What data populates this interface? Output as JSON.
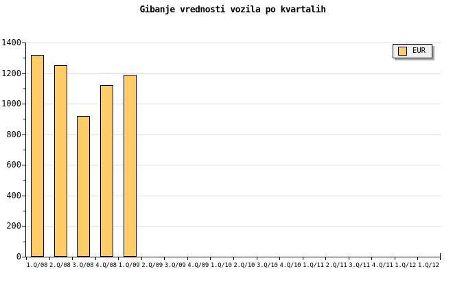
{
  "title": "Gibanje vrednosti vozila po kvartalih",
  "legend": {
    "label": "EUR"
  },
  "colors": {
    "bar_fill": "#FFCC66",
    "bar_border": "#000000",
    "grid": "#DCDCDC",
    "axis": "#000000",
    "legend_bg": "#F0F0F0",
    "legend_shadow": "#A9A9A9",
    "background": "#FFFFFF",
    "text": "#000000"
  },
  "chart_data": {
    "type": "bar",
    "title": "Gibanje vrednosti vozila po kvartalih",
    "categories": [
      "1.Q/08",
      "2.Q/08",
      "3.Q/08",
      "4.Q/08",
      "1.Q/09",
      "2.Q/09",
      "3.Q/09",
      "4.Q/09",
      "1.Q/10",
      "2.Q/10",
      "3.Q/10",
      "4.Q/10",
      "1.Q/11",
      "2.Q/11",
      "3.Q/11",
      "4.Q/11",
      "1.Q/12",
      "1.Q/12"
    ],
    "series": [
      {
        "name": "EUR",
        "values": [
          1320,
          1250,
          920,
          1120,
          1190,
          null,
          null,
          null,
          null,
          null,
          null,
          null,
          null,
          null,
          null,
          null,
          null,
          null
        ]
      }
    ],
    "xlabel": "",
    "ylabel": "",
    "ylim": [
      0,
      1400
    ],
    "yticks": [
      0,
      200,
      400,
      600,
      800,
      1000,
      1200,
      1400
    ],
    "y_minor_step": 100,
    "grid": "horizontal",
    "legend_position": "top-right"
  }
}
